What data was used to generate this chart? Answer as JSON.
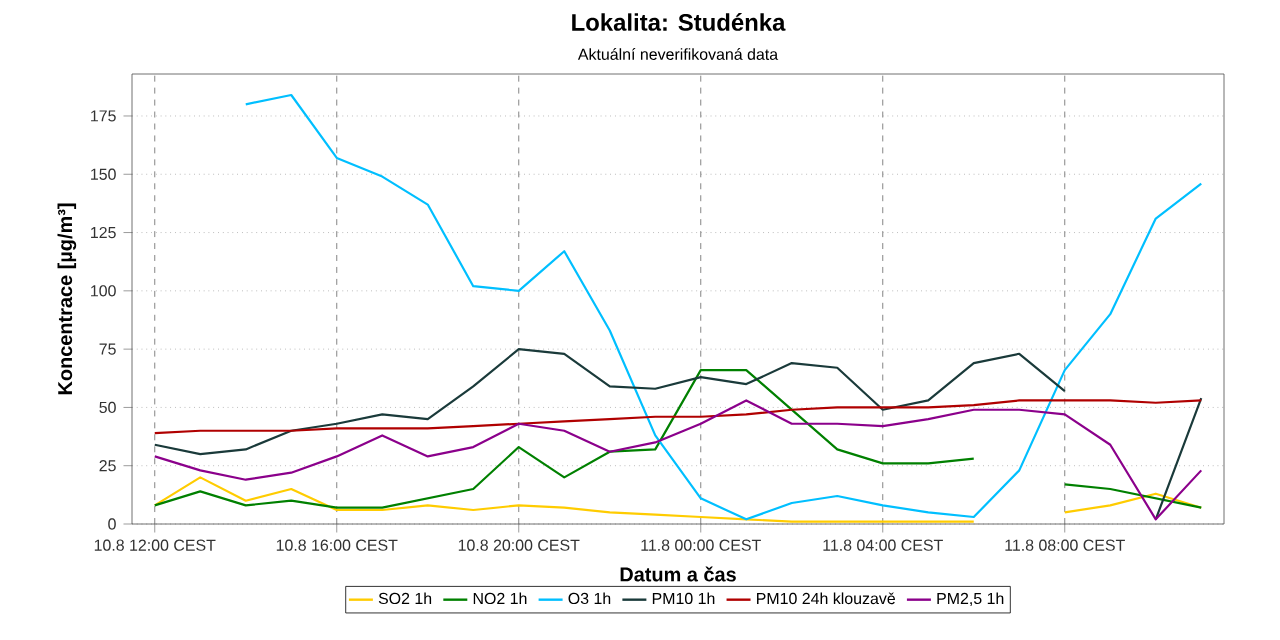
{
  "chart_data": {
    "type": "line",
    "title": "Lokalita: Studénka",
    "subtitle": "Aktuální neverifikovaná data",
    "xlabel": "Datum a čas",
    "ylabel": "Koncentrace [µg/m³]",
    "categories": [
      "10.8 12:00 CEST",
      null,
      null,
      null,
      "10.8 16:00 CEST",
      null,
      null,
      null,
      "10.8 20:00 CEST",
      null,
      null,
      null,
      "11.8 00:00 CEST",
      null,
      null,
      null,
      "11.8 04:00 CEST",
      null,
      null,
      null,
      "11.8 08:00 CEST",
      null,
      null,
      null
    ],
    "series": [
      {
        "name": "SO2 1h",
        "color": "#ffcc00",
        "values": [
          8,
          20,
          10,
          15,
          6,
          6,
          8,
          6,
          8,
          7,
          5,
          4,
          3,
          2,
          1,
          1,
          1,
          1,
          1,
          null,
          5,
          8,
          13,
          7
        ]
      },
      {
        "name": "NO2 1h",
        "color": "#008000",
        "values": [
          8,
          14,
          8,
          10,
          7,
          7,
          11,
          15,
          33,
          20,
          31,
          32,
          66,
          66,
          49,
          32,
          26,
          26,
          28,
          null,
          17,
          15,
          11,
          7
        ]
      },
      {
        "name": "O3 1h",
        "color": "#00bfff",
        "values": [
          null,
          null,
          180,
          184,
          157,
          149,
          137,
          102,
          100,
          117,
          83,
          38,
          11,
          2,
          9,
          12,
          8,
          5,
          3,
          23,
          66,
          90,
          131,
          146
        ]
      },
      {
        "name": "PM10 1h",
        "color": "#1a3a3a",
        "values": [
          34,
          30,
          32,
          40,
          43,
          47,
          45,
          59,
          75,
          73,
          59,
          58,
          63,
          60,
          69,
          67,
          49,
          53,
          69,
          73,
          57,
          null,
          2,
          54
        ]
      },
      {
        "name": "PM10 24h klouzavě",
        "color": "#b00000",
        "values": [
          39,
          40,
          40,
          40,
          41,
          41,
          41,
          42,
          43,
          44,
          45,
          46,
          46,
          47,
          49,
          50,
          50,
          50,
          51,
          53,
          53,
          53,
          52,
          53
        ]
      },
      {
        "name": "PM2,5 1h",
        "color": "#8b008b",
        "values": [
          29,
          23,
          19,
          22,
          29,
          38,
          29,
          33,
          43,
          40,
          31,
          35,
          43,
          53,
          43,
          43,
          42,
          45,
          49,
          49,
          47,
          34,
          2,
          23
        ]
      }
    ],
    "ylim": [
      0,
      193
    ],
    "yticks": [
      0,
      25,
      50,
      75,
      100,
      125,
      150,
      175
    ],
    "grid": true,
    "legend": "bottom",
    "marker": "none",
    "line_style": "solid"
  }
}
